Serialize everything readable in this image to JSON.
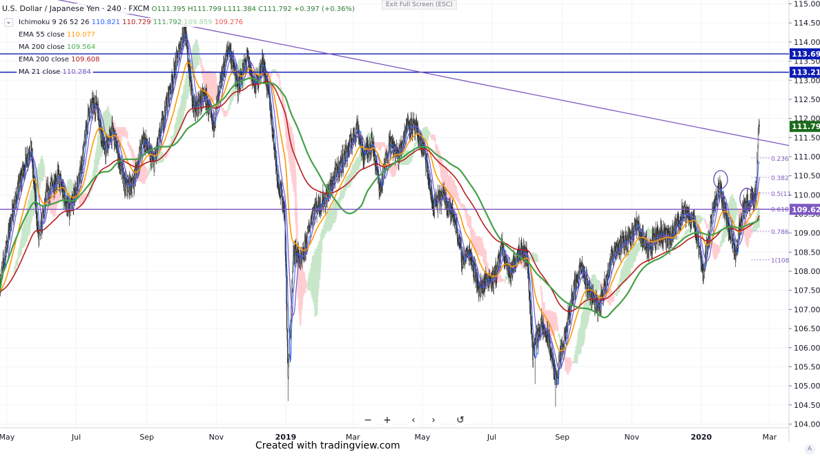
{
  "header": {
    "symbol": "U.S. Dollar / Japanese Yen · 240 · FXCM",
    "open": "O111.395",
    "high": "H111.799",
    "low": "L111.384",
    "close": "C111.792",
    "change": "+0.397 (+0.36%)",
    "exit_fullscreen": "Exit Full Screen (ESC)"
  },
  "indicators": [
    {
      "label": "Ichimoku 9 26 52 26",
      "values": [
        "110.821",
        "110.729",
        "111.792",
        "109.859",
        "109.276"
      ],
      "colors": [
        "#2962ff",
        "#b71c1c",
        "#43a047",
        "#a5d6a7",
        "#ef5350"
      ]
    },
    {
      "label": "EMA 55 close",
      "values": [
        "110.077"
      ],
      "colors": [
        "#ff9800"
      ]
    },
    {
      "label": "MA 200 close",
      "values": [
        "109.564"
      ],
      "colors": [
        "#4caf50"
      ]
    },
    {
      "label": "EMA 200 close",
      "values": [
        "109.608"
      ],
      "colors": [
        "#b71c1c"
      ]
    },
    {
      "label": "MA 21 close",
      "values": [
        "110.284"
      ],
      "colors": [
        "#7e57c2"
      ]
    }
  ],
  "price_badges": [
    {
      "text": "113.69",
      "color": "#0d1cb3"
    },
    {
      "text": "113.21",
      "color": "#0d1cb3"
    },
    {
      "text": "111.79",
      "color": "#1b6b1b"
    },
    {
      "text": "109.62",
      "color": "#7e57c2"
    }
  ],
  "fib_labels": [
    "0.236",
    "0.382",
    "0.5(11",
    "0.618",
    "0.786",
    "1(108"
  ],
  "controls": [
    "−",
    "+",
    "‹",
    "›",
    "↺"
  ],
  "footer": "Created with tradingview.com",
  "footer_badge": "A",
  "chart_data": {
    "type": "candlestick",
    "title": "U.S. Dollar / Japanese Yen · 240 · FXCM",
    "y_ticks": [
      "115.00",
      "114.50",
      "114.00",
      "113.50",
      "113.00",
      "112.50",
      "112.00",
      "111.50",
      "111.00",
      "110.50",
      "110.00",
      "109.50",
      "109.00",
      "108.50",
      "108.00",
      "107.50",
      "107.00",
      "106.50",
      "106.00",
      "105.50",
      "105.00",
      "104.50",
      "104.00"
    ],
    "ylim": [
      103.9,
      115.1
    ],
    "x_ticks": [
      "May",
      "Jul",
      "Sep",
      "Nov",
      "2019",
      "Mar",
      "May",
      "Jul",
      "Sep",
      "Nov",
      "2020",
      "Mar"
    ],
    "x_tick_dates": [
      "2018-05-01",
      "2018-07-01",
      "2018-09-01",
      "2018-11-01",
      "2019-01-01",
      "2019-03-01",
      "2019-05-01",
      "2019-07-01",
      "2019-09-01",
      "2019-11-01",
      "2020-01-01",
      "2020-03-01"
    ],
    "xlim": [
      "2018-04-25",
      "2020-03-18"
    ],
    "horizontal_lines": [
      {
        "price": 113.69,
        "color": "#0d1cb3"
      },
      {
        "price": 113.21,
        "color": "#0d1cb3"
      },
      {
        "price": 109.62,
        "color": "#7e57c2"
      }
    ],
    "trend_line": {
      "start": [
        "2018-05-05",
        115.35
      ],
      "end": [
        "2020-03-18",
        111.29
      ],
      "color": "#7e57c2"
    },
    "price_path": [
      [
        "2018-04-25",
        107.7
      ],
      [
        "2018-05-05",
        109.4
      ],
      [
        "2018-05-15",
        110.6
      ],
      [
        "2018-05-22",
        111.3
      ],
      [
        "2018-05-29",
        108.8
      ],
      [
        "2018-06-05",
        110.0
      ],
      [
        "2018-06-15",
        110.5
      ],
      [
        "2018-06-25",
        109.5
      ],
      [
        "2018-07-05",
        110.6
      ],
      [
        "2018-07-12",
        112.2
      ],
      [
        "2018-07-19",
        112.4
      ],
      [
        "2018-07-26",
        111.1
      ],
      [
        "2018-08-02",
        111.7
      ],
      [
        "2018-08-13",
        110.2
      ],
      [
        "2018-08-20",
        110.3
      ],
      [
        "2018-08-29",
        111.5
      ],
      [
        "2018-09-07",
        110.8
      ],
      [
        "2018-09-17",
        112.2
      ],
      [
        "2018-09-28",
        113.6
      ],
      [
        "2018-10-04",
        114.4
      ],
      [
        "2018-10-12",
        112.2
      ],
      [
        "2018-10-22",
        112.6
      ],
      [
        "2018-10-29",
        111.8
      ],
      [
        "2018-11-06",
        113.1
      ],
      [
        "2018-11-12",
        113.9
      ],
      [
        "2018-11-20",
        112.8
      ],
      [
        "2018-11-28",
        113.6
      ],
      [
        "2018-12-05",
        112.8
      ],
      [
        "2018-12-12",
        113.5
      ],
      [
        "2018-12-18",
        112.4
      ],
      [
        "2018-12-25",
        110.4
      ],
      [
        "2018-12-31",
        109.6
      ],
      [
        "2019-01-03",
        105.2
      ],
      [
        "2019-01-08",
        108.6
      ],
      [
        "2019-01-15",
        108.2
      ],
      [
        "2019-01-25",
        109.6
      ],
      [
        "2019-02-05",
        109.9
      ],
      [
        "2019-02-15",
        110.6
      ],
      [
        "2019-02-25",
        111.2
      ],
      [
        "2019-03-05",
        111.8
      ],
      [
        "2019-03-10",
        111.0
      ],
      [
        "2019-03-18",
        111.4
      ],
      [
        "2019-03-25",
        110.1
      ],
      [
        "2019-04-02",
        111.4
      ],
      [
        "2019-04-10",
        111.0
      ],
      [
        "2019-04-18",
        111.9
      ],
      [
        "2019-04-25",
        111.7
      ],
      [
        "2019-05-03",
        111.1
      ],
      [
        "2019-05-10",
        109.7
      ],
      [
        "2019-05-20",
        110.0
      ],
      [
        "2019-05-30",
        109.3
      ],
      [
        "2019-06-05",
        108.3
      ],
      [
        "2019-06-12",
        108.5
      ],
      [
        "2019-06-20",
        107.5
      ],
      [
        "2019-06-27",
        107.8
      ],
      [
        "2019-07-03",
        107.8
      ],
      [
        "2019-07-10",
        108.6
      ],
      [
        "2019-07-17",
        107.9
      ],
      [
        "2019-07-25",
        108.6
      ],
      [
        "2019-08-01",
        108.4
      ],
      [
        "2019-08-06",
        105.9
      ],
      [
        "2019-08-13",
        106.6
      ],
      [
        "2019-08-20",
        106.2
      ],
      [
        "2019-08-26",
        105.2
      ],
      [
        "2019-09-03",
        106.2
      ],
      [
        "2019-09-10",
        107.4
      ],
      [
        "2019-09-17",
        108.1
      ],
      [
        "2019-09-25",
        107.5
      ],
      [
        "2019-10-03",
        107.0
      ],
      [
        "2019-10-10",
        107.9
      ],
      [
        "2019-10-17",
        108.6
      ],
      [
        "2019-10-25",
        108.7
      ],
      [
        "2019-11-05",
        109.2
      ],
      [
        "2019-11-15",
        108.6
      ],
      [
        "2019-11-25",
        109.0
      ],
      [
        "2019-12-05",
        108.8
      ],
      [
        "2019-12-15",
        109.5
      ],
      [
        "2019-12-25",
        109.4
      ],
      [
        "2020-01-03",
        108.0
      ],
      [
        "2020-01-10",
        109.4
      ],
      [
        "2020-01-17",
        110.2
      ],
      [
        "2020-01-24",
        109.3
      ],
      [
        "2020-01-31",
        108.5
      ],
      [
        "2020-02-07",
        109.7
      ],
      [
        "2020-02-13",
        109.8
      ],
      [
        "2020-02-18",
        110.0
      ],
      [
        "2020-02-20",
        111.6
      ],
      [
        "2020-02-21",
        111.79
      ]
    ]
  }
}
